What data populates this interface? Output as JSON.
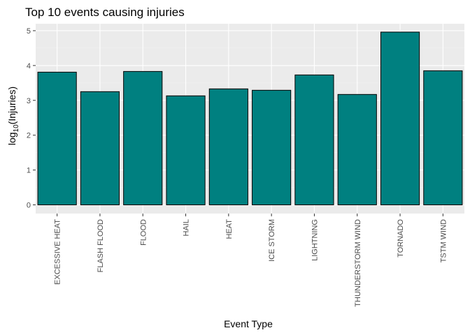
{
  "chart_data": {
    "type": "bar",
    "title": "Top 10 events causing injuries",
    "xlabel": "Event Type",
    "ylabel_main": "log",
    "ylabel_subscript": "10",
    "ylabel_rest": "(Injuries)",
    "categories": [
      "EXCESSIVE HEAT",
      "FLASH FLOOD",
      "FLOOD",
      "HAIL",
      "HEAT",
      "ICE STORM",
      "LIGHTNING",
      "THUNDERSTORM WIND",
      "TORNADO",
      "TSTM WIND"
    ],
    "values": [
      3.81,
      3.25,
      3.83,
      3.13,
      3.33,
      3.29,
      3.73,
      3.17,
      4.96,
      3.85
    ],
    "ylim": [
      -0.25,
      5.2
    ],
    "yticks": [
      0,
      1,
      2,
      3,
      4,
      5
    ],
    "ytick_labels": [
      "0",
      "1",
      "2",
      "3",
      "4",
      "5"
    ],
    "grid": true,
    "legend": "none",
    "colors": {
      "bar_fill": "#008080",
      "bar_stroke": "#000000",
      "panel_bg": "#ebebeb",
      "grid_major": "#ffffff",
      "grid_minor": "#f2f2f2"
    }
  }
}
